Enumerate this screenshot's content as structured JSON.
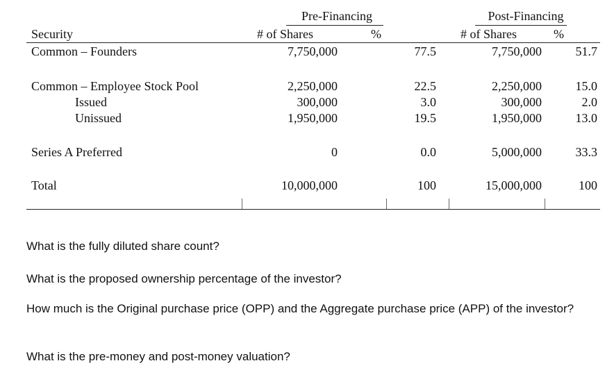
{
  "table": {
    "group_headers": {
      "pre": "Pre-Financing",
      "post": "Post-Financing"
    },
    "column_headers": {
      "security": "Security",
      "pre_shares": "# of Shares",
      "pre_pct": "%",
      "post_shares": "# of Shares",
      "post_pct": "%"
    },
    "rows": [
      {
        "label": "Common – Founders",
        "pre_shares": "7,750,000",
        "pre_pct": "77.5",
        "post_shares": "7,750,000",
        "post_pct": "51.7"
      },
      {
        "label": "Common – Employee Stock Pool",
        "pre_shares": "2,250,000",
        "pre_pct": "22.5",
        "post_shares": "2,250,000",
        "post_pct": "15.0"
      },
      {
        "label": "Issued",
        "pre_shares": "300,000",
        "pre_pct": "3.0",
        "post_shares": "300,000",
        "post_pct": "2.0"
      },
      {
        "label": "Unissued",
        "pre_shares": "1,950,000",
        "pre_pct": "19.5",
        "post_shares": "1,950,000",
        "post_pct": "13.0"
      },
      {
        "label": "Series A Preferred",
        "pre_shares": "0",
        "pre_pct": "0.0",
        "post_shares": "5,000,000",
        "post_pct": "33.3"
      },
      {
        "label": "Total",
        "pre_shares": "10,000,000",
        "pre_pct": "100",
        "post_shares": "15,000,000",
        "post_pct": "100"
      }
    ]
  },
  "questions": [
    "What is the fully diluted share count?",
    "What is the proposed ownership percentage of the investor?",
    "How much is the Original purchase price (OPP) and the Aggregate purchase price (APP) of the investor?",
    "What is the pre-money and post-money valuation?"
  ]
}
